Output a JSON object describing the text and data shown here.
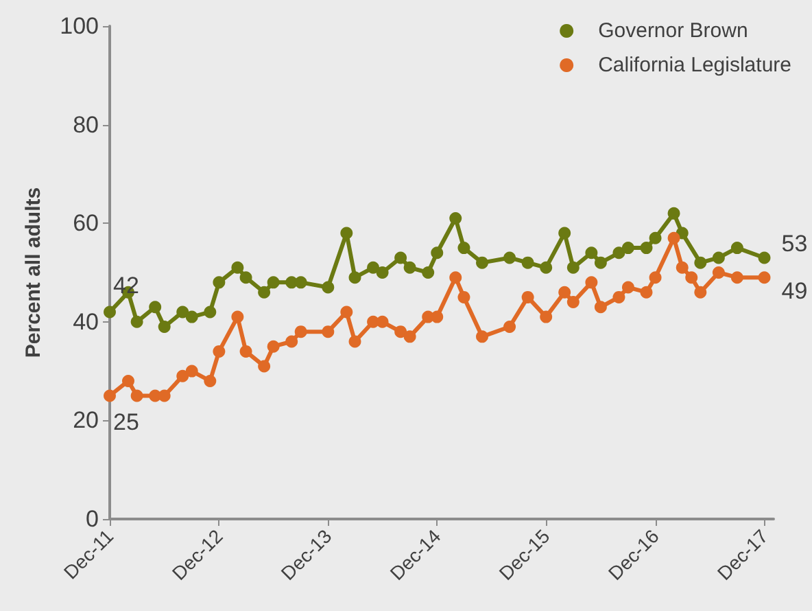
{
  "chart_data": {
    "type": "line",
    "ylabel": "Percent all adults",
    "xlim": [
      "2011-12",
      "2018-01"
    ],
    "ylim": [
      0,
      100
    ],
    "yticks": [
      0,
      20,
      40,
      60,
      80,
      100
    ],
    "xticks": [
      {
        "value": "2011-12",
        "label": "Dec-11"
      },
      {
        "value": "2012-12",
        "label": "Dec-12"
      },
      {
        "value": "2013-12",
        "label": "Dec-13"
      },
      {
        "value": "2014-12",
        "label": "Dec-14"
      },
      {
        "value": "2015-12",
        "label": "Dec-15"
      },
      {
        "value": "2016-12",
        "label": "Dec-16"
      },
      {
        "value": "2017-12",
        "label": "Dec-17"
      }
    ],
    "legend": "top right",
    "marker": "circle",
    "grid": false,
    "series": [
      {
        "name": "Governor Brown",
        "color": "#6b7a12",
        "x": [
          "2011-12",
          "2012-02",
          "2012-03",
          "2012-05",
          "2012-06",
          "2012-08",
          "2012-09",
          "2012-11",
          "2012-12",
          "2013-02",
          "2013-03",
          "2013-05",
          "2013-06",
          "2013-08",
          "2013-09",
          "2013-12",
          "2014-02",
          "2014-03",
          "2014-05",
          "2014-06",
          "2014-08",
          "2014-09",
          "2014-11",
          "2014-12",
          "2015-02",
          "2015-03",
          "2015-05",
          "2015-08",
          "2015-10",
          "2015-12",
          "2016-02",
          "2016-03",
          "2016-05",
          "2016-06",
          "2016-08",
          "2016-09",
          "2016-11",
          "2016-12",
          "2017-02",
          "2017-03",
          "2017-05",
          "2017-07",
          "2017-09",
          "2017-12"
        ],
        "values": [
          42,
          46,
          40,
          43,
          39,
          42,
          41,
          42,
          48,
          51,
          49,
          46,
          48,
          48,
          48,
          47,
          58,
          49,
          51,
          50,
          53,
          51,
          50,
          54,
          61,
          55,
          52,
          53,
          52,
          51,
          58,
          51,
          54,
          52,
          54,
          55,
          55,
          57,
          62,
          58,
          52,
          53,
          55,
          53
        ],
        "value_labels": [
          "42",
          null,
          null,
          null,
          null,
          null,
          null,
          null,
          null,
          null,
          null,
          null,
          null,
          null,
          null,
          null,
          null,
          null,
          null,
          null,
          null,
          null,
          null,
          null,
          null,
          null,
          null,
          null,
          null,
          null,
          null,
          null,
          null,
          null,
          null,
          null,
          null,
          null,
          null,
          null,
          null,
          null,
          null,
          "53"
        ]
      },
      {
        "name": "California Legislature",
        "color": "#e06a26",
        "x": [
          "2011-12",
          "2012-02",
          "2012-03",
          "2012-05",
          "2012-06",
          "2012-08",
          "2012-09",
          "2012-11",
          "2012-12",
          "2013-02",
          "2013-03",
          "2013-05",
          "2013-06",
          "2013-08",
          "2013-09",
          "2013-12",
          "2014-02",
          "2014-03",
          "2014-05",
          "2014-06",
          "2014-08",
          "2014-09",
          "2014-11",
          "2014-12",
          "2015-02",
          "2015-03",
          "2015-05",
          "2015-08",
          "2015-10",
          "2015-12",
          "2016-02",
          "2016-03",
          "2016-05",
          "2016-06",
          "2016-08",
          "2016-09",
          "2016-11",
          "2016-12",
          "2017-02",
          "2017-03",
          "2017-04",
          "2017-05",
          "2017-07",
          "2017-09",
          "2017-12"
        ],
        "values": [
          25,
          28,
          25,
          25,
          25,
          29,
          30,
          28,
          34,
          41,
          34,
          31,
          35,
          36,
          38,
          38,
          42,
          36,
          40,
          40,
          38,
          37,
          41,
          41,
          49,
          45,
          37,
          39,
          45,
          41,
          46,
          44,
          48,
          43,
          45,
          47,
          46,
          49,
          57,
          51,
          49,
          46,
          50,
          49,
          49
        ],
        "value_labels": [
          "25",
          null,
          null,
          null,
          null,
          null,
          null,
          null,
          null,
          null,
          null,
          null,
          null,
          null,
          null,
          null,
          null,
          null,
          null,
          null,
          null,
          null,
          null,
          null,
          null,
          null,
          null,
          null,
          null,
          null,
          null,
          null,
          null,
          null,
          null,
          null,
          null,
          null,
          null,
          null,
          null,
          null,
          null,
          null,
          "49"
        ]
      }
    ]
  }
}
